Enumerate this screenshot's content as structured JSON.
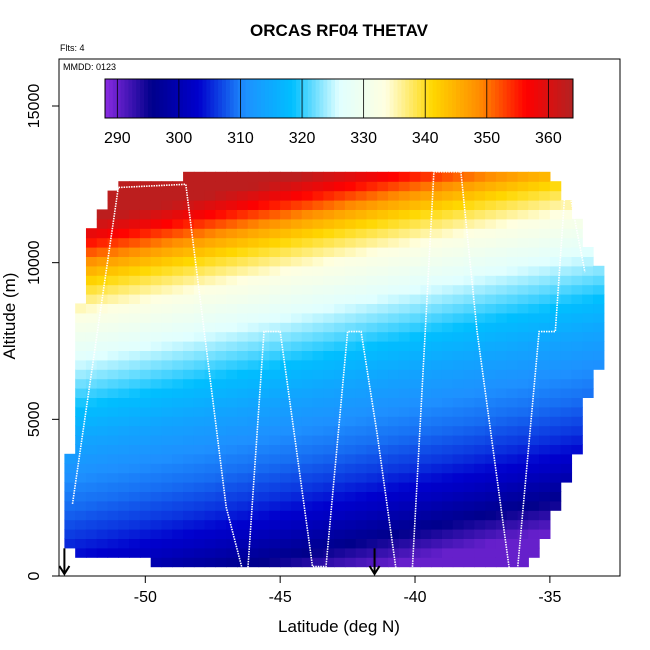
{
  "chart_data": {
    "type": "heatmap",
    "title": "ORCAS RF04 THETAV",
    "xlabel": "Latitude (deg N)",
    "ylabel": "Altitude (m)",
    "notes": {
      "flights": "Flts: 4",
      "date": "MMDD: 0123"
    },
    "xlim": [
      -53.2,
      -32.4
    ],
    "ylim": [
      0,
      16500
    ],
    "x_ticks": [
      -50,
      -45,
      -40,
      -35
    ],
    "x_tick_labels": [
      "-50",
      "-45",
      "-40",
      "-35"
    ],
    "y_ticks": [
      0,
      5000,
      10000,
      15000
    ],
    "y_tick_labels": [
      "0",
      "5000",
      "10000",
      "15000"
    ],
    "colorbar": {
      "range": [
        288,
        364
      ],
      "ticks": [
        290,
        300,
        310,
        320,
        330,
        340,
        350,
        360
      ],
      "tick_labels": [
        "290",
        "300",
        "310",
        "320",
        "330",
        "340",
        "350",
        "360"
      ],
      "colors": [
        "#8a2be2",
        "#00008b",
        "#0000cd",
        "#1e90ff",
        "#00bfff",
        "#e0ffff",
        "#ffffe0",
        "#ffd700",
        "#ff8c00",
        "#ff0000",
        "#b22222"
      ]
    },
    "coverage": {
      "lat": [
        -53.0,
        -52.5,
        -52.0,
        -51.0,
        -50.0,
        -49.0,
        -48.0,
        -47.0,
        -46.0,
        -45.0,
        -44.0,
        -43.0,
        -42.0,
        -41.0,
        -40.0,
        -39.0,
        -38.0,
        -37.0,
        -36.0,
        -35.0,
        -34.0,
        -33.4
      ],
      "bottom": [
        1000,
        700,
        600,
        500,
        450,
        400,
        300,
        200,
        150,
        200,
        250,
        300,
        250,
        200,
        150,
        200,
        250,
        200,
        150,
        1500,
        4000,
        6500
      ],
      "top": [
        1200,
        8000,
        11000,
        12600,
        12700,
        12700,
        12800,
        12850,
        12900,
        12900,
        12900,
        12900,
        12900,
        12900,
        12950,
        13000,
        13000,
        12900,
        12900,
        12800,
        11500,
        9800
      ]
    },
    "theta_profile": {
      "altitude_m": [
        0,
        1000,
        2000,
        3000,
        4000,
        5000,
        6000,
        7000,
        8000,
        9000,
        10000,
        10500,
        11000,
        11500,
        12000,
        12500,
        13000
      ],
      "theta_K": [
        290,
        296,
        302,
        306,
        309,
        311,
        314,
        318,
        323,
        328,
        333,
        337,
        341,
        346,
        352,
        358,
        363
      ]
    },
    "track": {
      "lat": [
        -52.7,
        -51.0,
        -48.5,
        -47.0,
        -46.4,
        -46.2,
        -45.6,
        -45.0,
        -43.8,
        -43.3,
        -42.5,
        -42.0,
        -41.4,
        -40.7,
        -40.1,
        -39.3,
        -38.3,
        -37.7,
        -36.5,
        -36.2,
        -35.4,
        -34.8,
        -34.4,
        -33.7
      ],
      "alt_m": [
        2300,
        12400,
        12500,
        2200,
        200,
        200,
        7800,
        7800,
        300,
        300,
        7800,
        7800,
        4500,
        200,
        200,
        12900,
        12900,
        7800,
        200,
        200,
        7800,
        7800,
        12800,
        9700
      ]
    },
    "markers": {
      "lat": [
        -53.0,
        -41.5
      ],
      "alt_m": [
        500,
        500
      ]
    },
    "grid": false,
    "legend": "colorbar at top"
  }
}
